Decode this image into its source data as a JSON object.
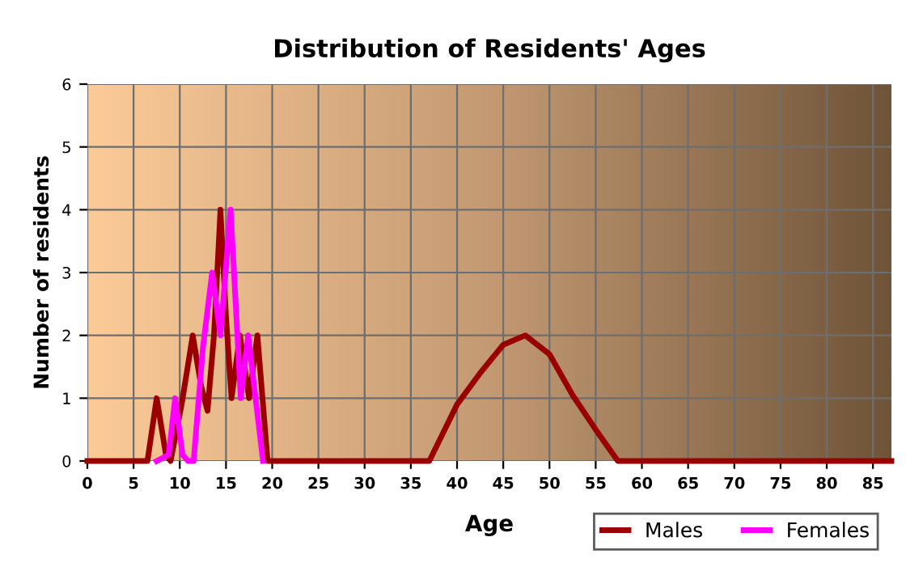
{
  "chart_data": {
    "type": "line",
    "title": "Distribution of Residents' Ages",
    "xlabel": "Age",
    "ylabel": "Number of residents",
    "xlim": [
      0,
      87
    ],
    "xticks": [
      0,
      5,
      10,
      15,
      20,
      25,
      30,
      35,
      40,
      45,
      50,
      55,
      60,
      65,
      70,
      75,
      80,
      85
    ],
    "ylim": [
      0,
      6
    ],
    "yticks": [
      0,
      1,
      2,
      3,
      4,
      5,
      6
    ],
    "grid": true,
    "legend": "bottom right",
    "marker": "none",
    "line_style": "solid",
    "series": [
      {
        "name": "Males",
        "color": "#990000",
        "x": [
          0,
          6.5,
          7.5,
          8.5,
          9,
          10.2,
          11.4,
          12.3,
          13,
          13.7,
          14.4,
          15,
          15.6,
          16.5,
          17.5,
          18.4,
          19.5,
          20,
          33,
          35,
          37,
          40,
          42.5,
          45,
          47.4,
          50,
          52.5,
          55,
          57.4,
          60,
          87
        ],
        "values": [
          0,
          0,
          1,
          0.1,
          0,
          0.9,
          2,
          1.2,
          0.8,
          2,
          4,
          2.3,
          1,
          2,
          1,
          2,
          0,
          0,
          0,
          0,
          0,
          0.9,
          1.4,
          1.85,
          2,
          1.7,
          1.05,
          0.5,
          0,
          0,
          0
        ]
      },
      {
        "name": "Females",
        "color": "#ff00ff",
        "x": [
          7.5,
          8.8,
          9.5,
          10.3,
          10.9,
          11.5,
          12.5,
          13.5,
          14.4,
          15.5,
          16.6,
          17.4,
          18.2,
          19
        ],
        "values": [
          0,
          0.1,
          1,
          0.1,
          0,
          0,
          1.8,
          3,
          2,
          4,
          1,
          2,
          1,
          0
        ]
      }
    ]
  }
}
